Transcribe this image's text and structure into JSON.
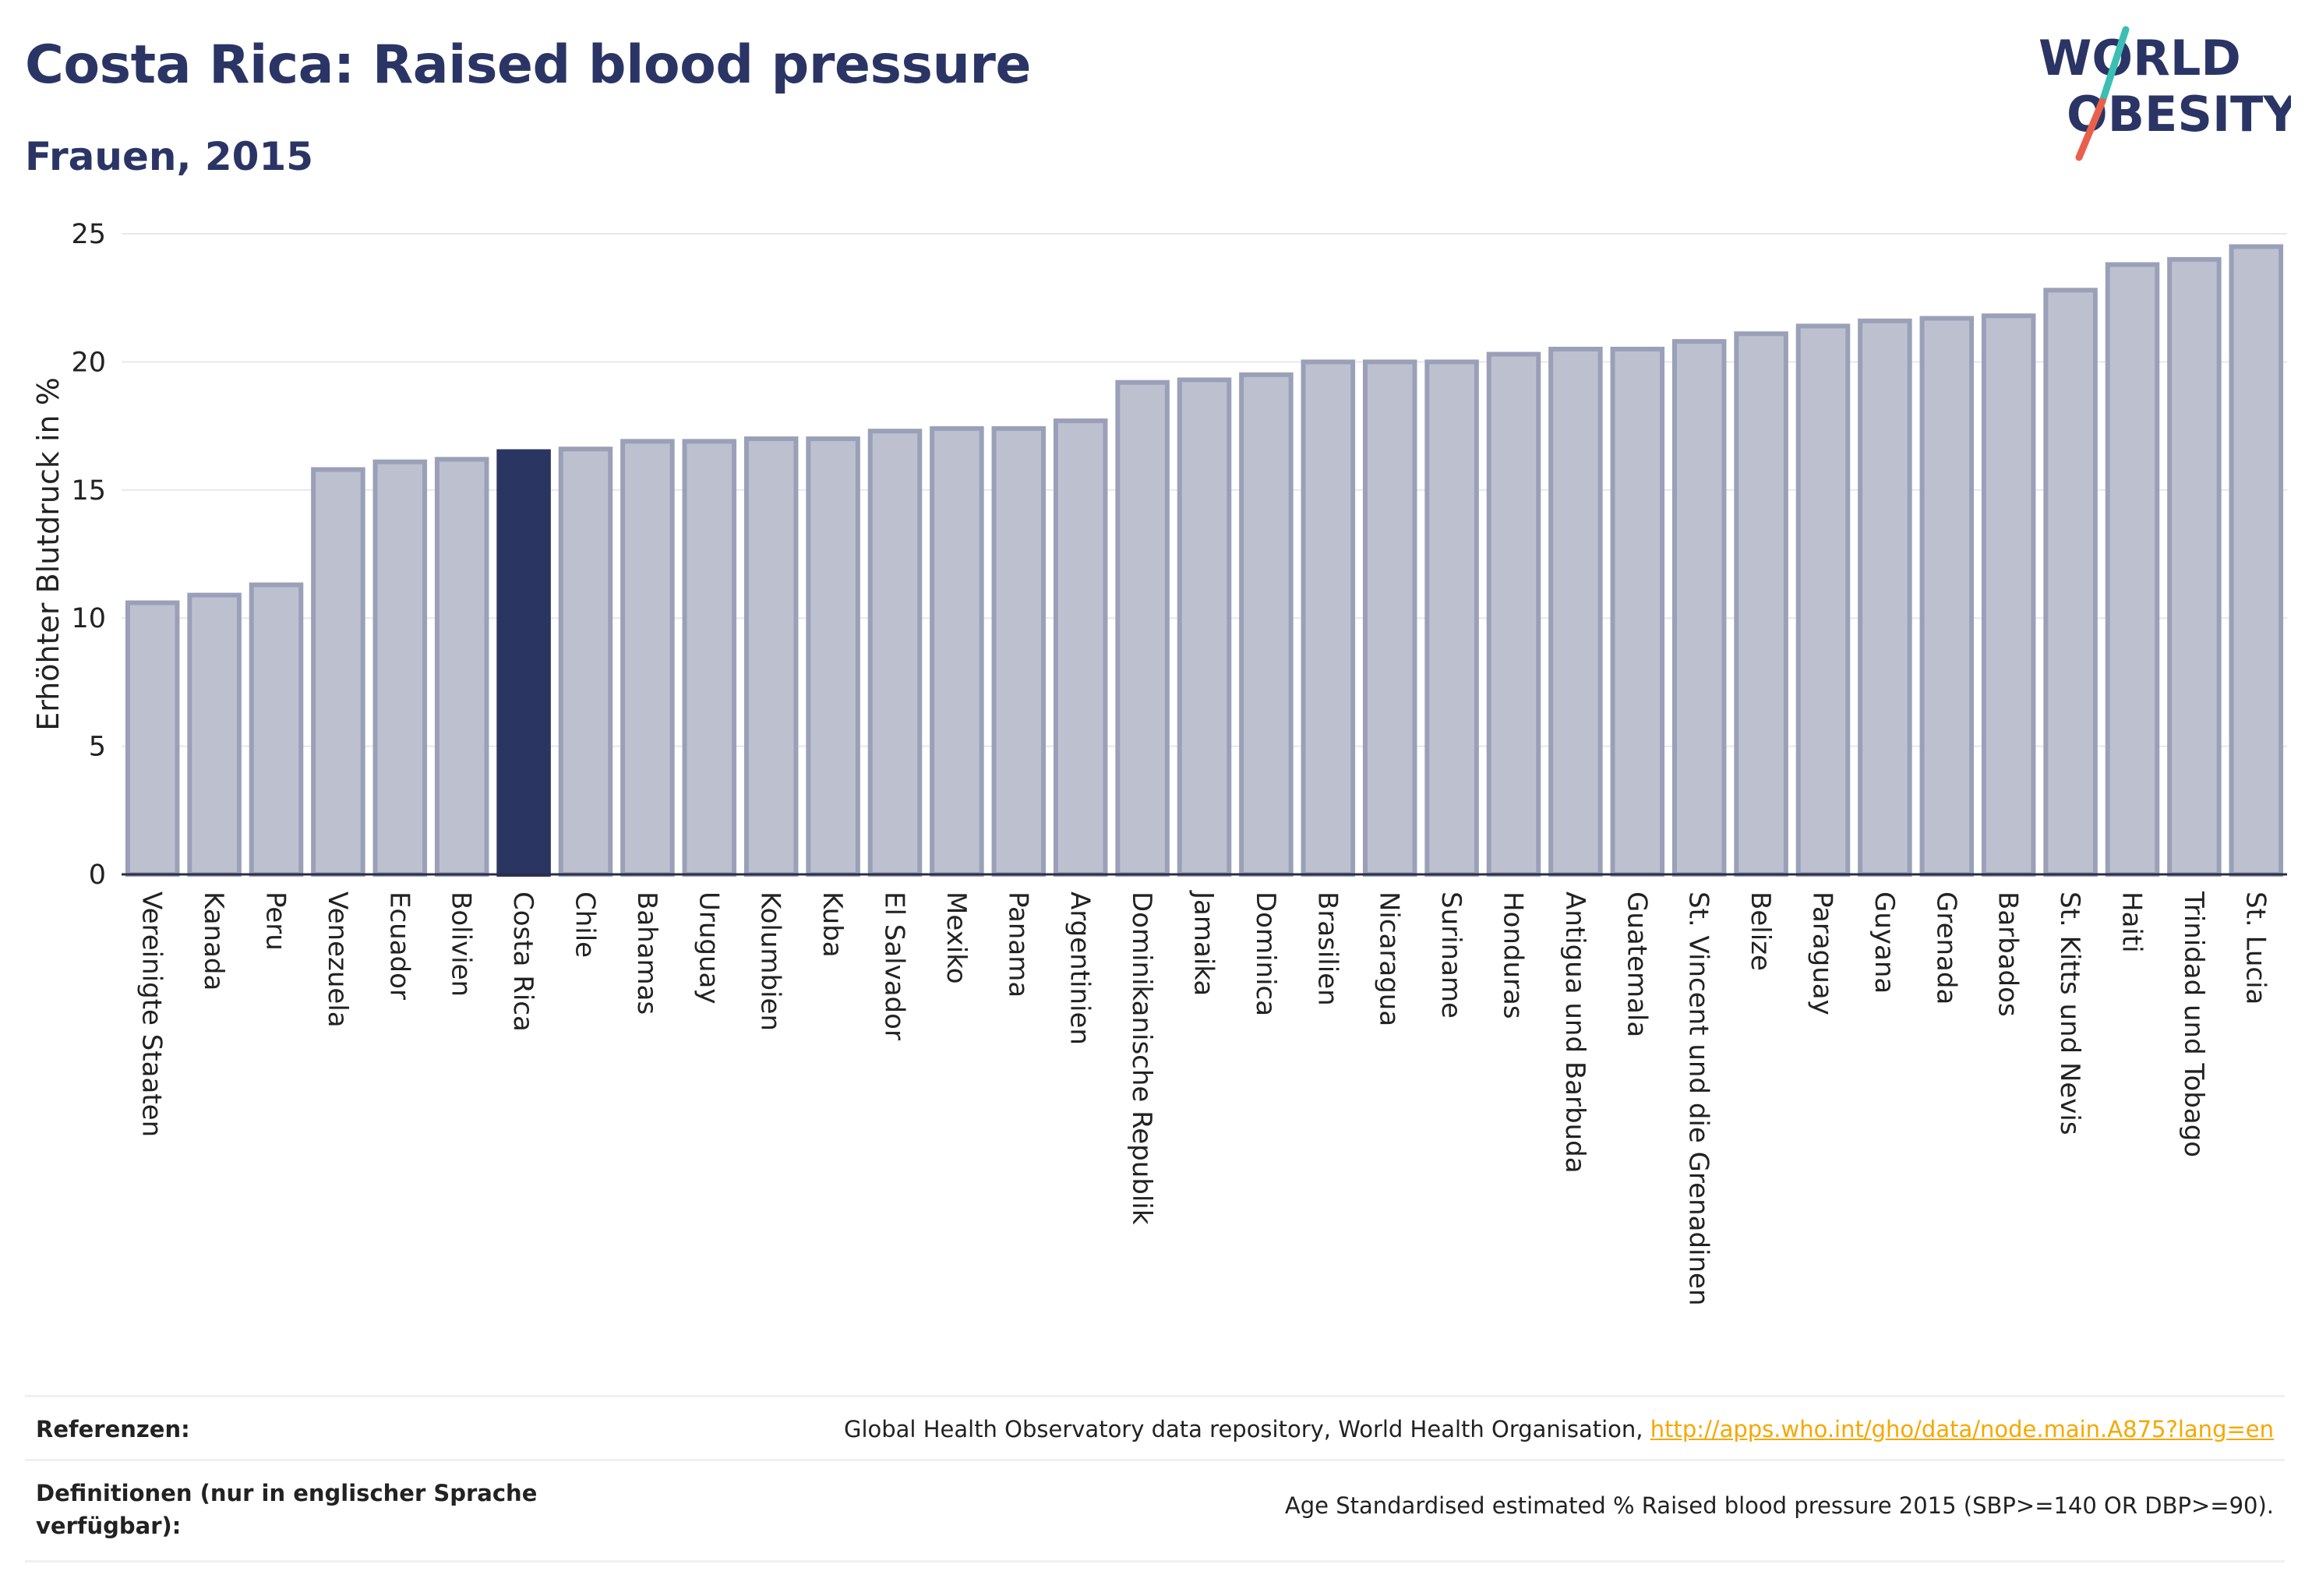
{
  "header": {
    "title": "Costa Rica: Raised blood pressure",
    "subtitle": "Frauen, 2015"
  },
  "logo": {
    "line1": "WORLD",
    "line2": "OBESITY"
  },
  "colors": {
    "highlight": "#2b3561",
    "bar_fill": "#bdc1cf",
    "bar_stroke": "#9aa0b8",
    "gridline": "#e6e8ef",
    "axis": "#2a2f45",
    "logo_navy": "#2a3565",
    "logo_teal": "#3bbfb2",
    "logo_coral": "#e8604c",
    "link": "#f5a800"
  },
  "chart_data": {
    "type": "bar",
    "ylabel": "Erhöhter Blutdruck in %",
    "xlabel": "",
    "ylim": [
      0,
      25
    ],
    "yticks": [
      0,
      5,
      10,
      15,
      20,
      25
    ],
    "grid": true,
    "highlight": "Costa Rica",
    "categories": [
      "Vereinigte Staaten",
      "Kanada",
      "Peru",
      "Venezuela",
      "Ecuador",
      "Bolivien",
      "Costa Rica",
      "Chile",
      "Bahamas",
      "Uruguay",
      "Kolumbien",
      "Kuba",
      "El Salvador",
      "Mexiko",
      "Panama",
      "Argentinien",
      "Dominikanische Republik",
      "Jamaika",
      "Dominica",
      "Brasilien",
      "Nicaragua",
      "Suriname",
      "Honduras",
      "Antigua und Barbuda",
      "Guatemala",
      "St. Vincent und die Grenadinen",
      "Belize",
      "Paraguay",
      "Guyana",
      "Grenada",
      "Barbados",
      "St. Kitts und Nevis",
      "Haiti",
      "Trinidad und Tobago",
      "St. Lucia"
    ],
    "values": [
      10.6,
      10.9,
      11.3,
      15.8,
      16.1,
      16.2,
      16.5,
      16.6,
      16.9,
      16.9,
      17.0,
      17.0,
      17.3,
      17.4,
      17.4,
      17.7,
      19.2,
      19.3,
      19.5,
      20.0,
      20.0,
      20.0,
      20.3,
      20.5,
      20.5,
      20.8,
      21.1,
      21.4,
      21.6,
      21.7,
      21.8,
      22.8,
      23.8,
      24.0,
      24.5
    ]
  },
  "footer": {
    "references_label": "Referenzen:",
    "references_text": "Global Health Observatory data repository, World Health Organisation,",
    "references_link": "http://apps.who.int/gho/data/node.main.A875?lang=en",
    "definitions_label": "Definitionen (nur in englischer Sprache verfügbar):",
    "definitions_text": "Age Standardised estimated % Raised blood pressure 2015 (SBP>=140 OR DBP>=90)."
  }
}
